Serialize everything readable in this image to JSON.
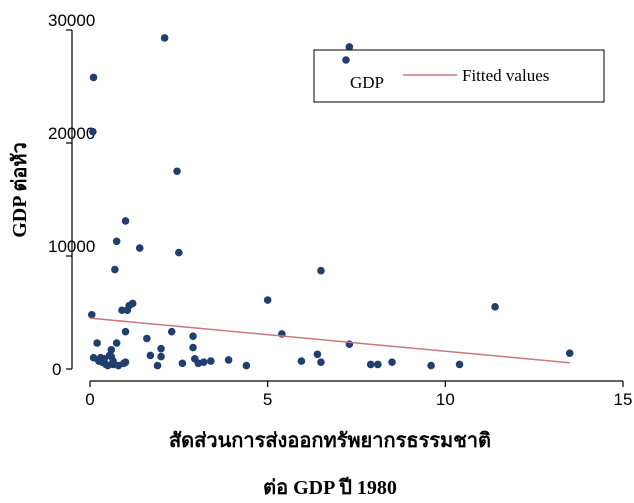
{
  "chart_data": {
    "type": "scatter",
    "ylabel": "GDP ต่อหัว",
    "xlabel_line1": "สัดส่วนการส่งออกทรัพยากรธรรมชาติ",
    "xlabel_line2": "ต่อ GDP ปี 1980",
    "xlim": [
      0,
      15
    ],
    "ylim": [
      0,
      30000
    ],
    "x_ticks": [
      0,
      5,
      10,
      15
    ],
    "x_tick_labels": [
      "0",
      "5",
      "10",
      "15"
    ],
    "y_ticks": [
      0,
      10000,
      20000,
      30000
    ],
    "y_tick_labels": [
      "0",
      "10000",
      "20000",
      "30000"
    ],
    "grid": false,
    "legend_position": "top-right",
    "point_color": "#1f3f6e",
    "line_color": "#c9787e",
    "series": [
      {
        "name": "GDP",
        "mode": "markers",
        "x": [
          0.05,
          0.08,
          0.1,
          0.1,
          0.2,
          0.25,
          0.3,
          0.35,
          0.4,
          0.45,
          0.5,
          0.55,
          0.6,
          0.6,
          0.65,
          0.65,
          0.7,
          0.75,
          0.75,
          0.8,
          0.9,
          0.95,
          1.0,
          1.0,
          1.0,
          1.05,
          1.1,
          1.2,
          1.4,
          1.6,
          1.7,
          1.9,
          2.0,
          2.0,
          2.1,
          2.3,
          2.45,
          2.5,
          2.6,
          2.9,
          2.9,
          2.95,
          3.05,
          3.2,
          3.4,
          3.9,
          4.4,
          5.0,
          5.4,
          5.95,
          6.4,
          6.5,
          6.5,
          7.3,
          7.3,
          7.9,
          8.1,
          8.5,
          9.6,
          10.4,
          11.4,
          13.5
        ],
        "y": [
          4800,
          21000,
          25800,
          1000,
          2300,
          700,
          1000,
          600,
          900,
          400,
          300,
          1200,
          1100,
          1700,
          400,
          700,
          8800,
          2300,
          11300,
          300,
          5200,
          500,
          3300,
          13100,
          600,
          5200,
          5600,
          5800,
          10700,
          2700,
          1200,
          300,
          1800,
          1100,
          29300,
          3300,
          17500,
          10300,
          500,
          2900,
          1900,
          900,
          500,
          600,
          700,
          800,
          300,
          6100,
          3100,
          700,
          1300,
          8700,
          600,
          2200,
          28500,
          400,
          400,
          600,
          300,
          400,
          5500,
          1400
        ]
      },
      {
        "name": "Fitted values",
        "mode": "line",
        "x": [
          0,
          13.5
        ],
        "y": [
          4500,
          550
        ]
      }
    ]
  }
}
